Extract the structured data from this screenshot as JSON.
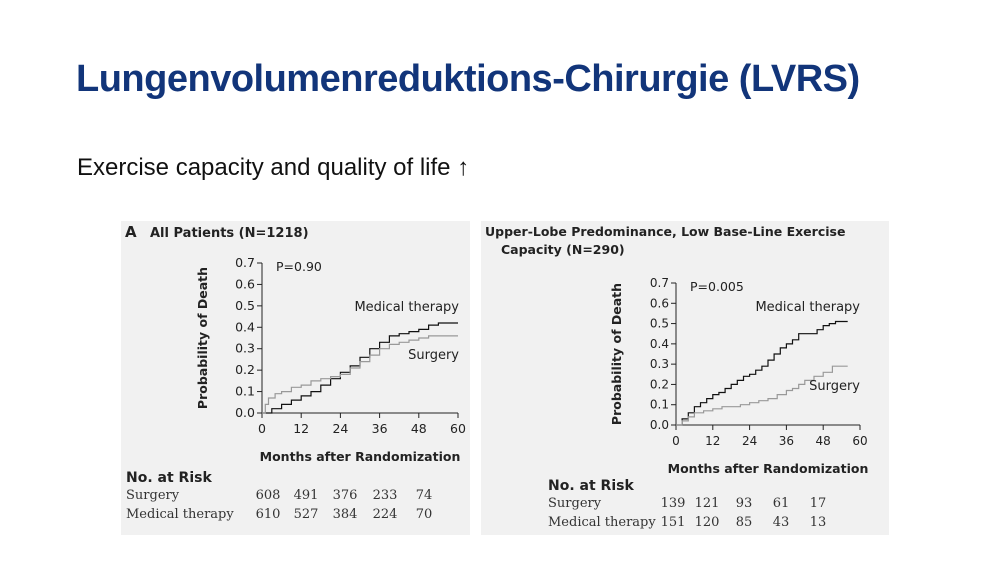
{
  "slide": {
    "title": "Lungenvolumenreduktions-Chirurgie (LVRS)",
    "subtitle": "Exercise capacity and quality of life ↑"
  },
  "colors": {
    "title": "#12357a",
    "medical_line": "#111111",
    "surgery_line": "#999999",
    "panel_bg": "#f1f1f1"
  },
  "chart_data": [
    {
      "type": "line",
      "panel_letter": "A",
      "title": "All Patients (N=1218)",
      "xlabel": "Months after Randomization",
      "ylabel": "Probability of Death",
      "xlim": [
        0,
        60
      ],
      "ylim": [
        0,
        0.7
      ],
      "xticks": [
        "0",
        "12",
        "24",
        "36",
        "48",
        "60"
      ],
      "yticks": [
        "0.0",
        "0.1",
        "0.2",
        "0.3",
        "0.4",
        "0.5",
        "0.6",
        "0.7"
      ],
      "annotation": "P=0.90",
      "grid": false,
      "series": [
        {
          "name": "Medical therapy",
          "color": "#111111",
          "x": [
            0,
            3,
            6,
            9,
            12,
            15,
            18,
            21,
            24,
            27,
            30,
            33,
            36,
            39,
            42,
            45,
            48,
            51,
            54,
            60
          ],
          "y": [
            0,
            0.02,
            0.04,
            0.06,
            0.08,
            0.1,
            0.13,
            0.16,
            0.19,
            0.22,
            0.26,
            0.3,
            0.33,
            0.36,
            0.37,
            0.38,
            0.39,
            0.41,
            0.42,
            0.42
          ]
        },
        {
          "name": "Surgery",
          "color": "#999999",
          "x": [
            0,
            1,
            2,
            4,
            6,
            9,
            12,
            15,
            18,
            21,
            24,
            27,
            30,
            33,
            36,
            39,
            42,
            45,
            48,
            51,
            54,
            60
          ],
          "y": [
            0,
            0.04,
            0.07,
            0.09,
            0.1,
            0.12,
            0.13,
            0.15,
            0.16,
            0.17,
            0.18,
            0.21,
            0.24,
            0.27,
            0.3,
            0.32,
            0.33,
            0.34,
            0.35,
            0.36,
            0.36,
            0.36
          ]
        }
      ],
      "risk_table": {
        "title": "No. at Risk",
        "rows": [
          {
            "label": "Surgery",
            "values": [
              "608",
              "491",
              "376",
              "233",
              "74"
            ]
          },
          {
            "label": "Medical therapy",
            "values": [
              "610",
              "527",
              "384",
              "224",
              "70"
            ]
          }
        ]
      }
    },
    {
      "type": "line",
      "title_line1": "Upper-Lobe Predominance, Low Base-Line Exercise",
      "title_line2": "Capacity (N=290)",
      "xlabel": "Months after Randomization",
      "ylabel": "Probability of Death",
      "xlim": [
        0,
        60
      ],
      "ylim": [
        0,
        0.7
      ],
      "xticks": [
        "0",
        "12",
        "24",
        "36",
        "48",
        "60"
      ],
      "yticks": [
        "0.0",
        "0.1",
        "0.2",
        "0.3",
        "0.4",
        "0.5",
        "0.6",
        "0.7"
      ],
      "annotation": "P=0.005",
      "grid": false,
      "series": [
        {
          "name": "Medical therapy",
          "color": "#111111",
          "x": [
            0,
            2,
            4,
            6,
            8,
            10,
            12,
            14,
            16,
            18,
            20,
            22,
            24,
            26,
            28,
            30,
            32,
            34,
            36,
            38,
            40,
            42,
            44,
            46,
            48,
            50,
            52,
            56
          ],
          "y": [
            0,
            0.03,
            0.06,
            0.09,
            0.11,
            0.13,
            0.15,
            0.16,
            0.18,
            0.2,
            0.22,
            0.24,
            0.25,
            0.27,
            0.29,
            0.32,
            0.35,
            0.38,
            0.4,
            0.42,
            0.45,
            0.45,
            0.45,
            0.47,
            0.49,
            0.5,
            0.51,
            0.51
          ]
        },
        {
          "name": "Surgery",
          "color": "#999999",
          "x": [
            0,
            2,
            4,
            6,
            9,
            12,
            15,
            18,
            21,
            24,
            27,
            30,
            33,
            36,
            38,
            40,
            42,
            45,
            48,
            51,
            56
          ],
          "y": [
            0,
            0.02,
            0.04,
            0.06,
            0.07,
            0.08,
            0.09,
            0.09,
            0.1,
            0.11,
            0.12,
            0.13,
            0.15,
            0.17,
            0.18,
            0.2,
            0.22,
            0.24,
            0.26,
            0.29,
            0.29
          ]
        }
      ],
      "risk_table": {
        "title": "No. at Risk",
        "rows": [
          {
            "label": "Surgery",
            "values": [
              "139",
              "121",
              "93",
              "61",
              "17"
            ]
          },
          {
            "label": "Medical therapy",
            "values": [
              "151",
              "120",
              "85",
              "43",
              "13"
            ]
          }
        ]
      }
    }
  ]
}
